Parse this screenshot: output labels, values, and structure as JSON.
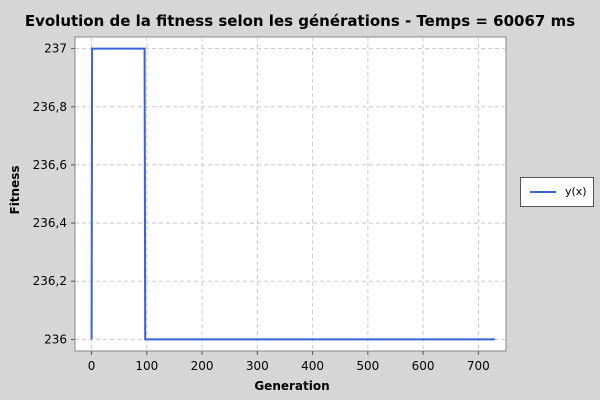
{
  "chart_data": {
    "type": "line",
    "title": "Evolution de la fitness selon les générations - Temps = 60067 ms",
    "xlabel": "Generation",
    "ylabel": "Fitness",
    "xlim": [
      -30,
      750
    ],
    "ylim": [
      235.96,
      237.04
    ],
    "x_ticks": [
      0,
      100,
      200,
      300,
      400,
      500,
      600,
      700
    ],
    "y_ticks": [
      {
        "value": 236.0,
        "label": "236"
      },
      {
        "value": 236.2,
        "label": "236,2"
      },
      {
        "value": 236.4,
        "label": "236,4"
      },
      {
        "value": 236.6,
        "label": "236,6"
      },
      {
        "value": 236.8,
        "label": "236,8"
      },
      {
        "value": 237.0,
        "label": "237"
      }
    ],
    "grid": true,
    "legend_position": "right",
    "series": [
      {
        "name": "y(x)",
        "color": "#3a62d8",
        "x": [
          0,
          1,
          96,
          97,
          730
        ],
        "y": [
          236,
          237,
          237,
          236,
          236
        ]
      }
    ]
  }
}
